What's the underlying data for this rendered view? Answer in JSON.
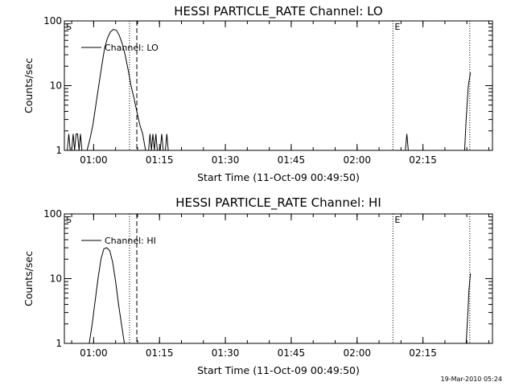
{
  "chart_data": [
    {
      "type": "line",
      "title": "HESSI PARTICLE_RATE Channel: LO",
      "xlabel": "Start Time (11-Oct-09 00:49:50)",
      "ylabel": "Counts/sec",
      "yscale": "log",
      "ylim": [
        1,
        100
      ],
      "xlim": [
        "00:53:20",
        "02:30:50"
      ],
      "x_ticks": [
        "01:00",
        "01:15",
        "01:30",
        "01:45",
        "02:00",
        "02:15"
      ],
      "y_ticks": [
        "1",
        "10",
        "100"
      ],
      "legend": {
        "placement": "top-left",
        "entries": [
          "Channel: LO"
        ]
      },
      "markers": [
        {
          "label": "S",
          "x": "00:53:20",
          "style": "dotted"
        },
        {
          "label": "",
          "x": "01:08:10",
          "style": "dotted"
        },
        {
          "label": "",
          "x": "01:09:50",
          "style": "dashed"
        },
        {
          "label": "E",
          "x": "02:08:10",
          "style": "dotted"
        },
        {
          "label": "",
          "x": "02:25:40",
          "style": "dotted"
        }
      ],
      "series": [
        {
          "name": "Channel: LO",
          "segments": [
            [
              [
                "00:54:00",
                1
              ],
              [
                "00:54:20",
                1.8
              ],
              [
                "00:54:40",
                1
              ],
              [
                "00:55:00",
                1
              ],
              [
                "00:55:20",
                1.8
              ],
              [
                "00:55:40",
                1
              ],
              [
                "00:56:00",
                1.8
              ],
              [
                "00:56:20",
                1.8
              ],
              [
                "00:56:40",
                1
              ],
              [
                "00:57:00",
                1.8
              ],
              [
                "00:57:20",
                1
              ]
            ],
            [
              [
                "00:58:30",
                1
              ],
              [
                "00:59:10",
                1.5
              ],
              [
                "00:59:50",
                2.5
              ],
              [
                "01:00:30",
                5
              ],
              [
                "01:01:10",
                10
              ],
              [
                "01:01:50",
                20
              ],
              [
                "01:02:30",
                38
              ],
              [
                "01:03:10",
                55
              ],
              [
                "01:03:50",
                68
              ],
              [
                "01:04:30",
                74
              ],
              [
                "01:05:10",
                72
              ],
              [
                "01:05:50",
                60
              ],
              [
                "01:06:30",
                45
              ],
              [
                "01:07:10",
                30
              ],
              [
                "01:07:50",
                18
              ],
              [
                "01:08:30",
                10
              ],
              [
                "01:09:10",
                6.5
              ],
              [
                "01:09:50",
                4
              ],
              [
                "01:10:30",
                2.5
              ],
              [
                "01:11:10",
                1.8
              ],
              [
                "01:11:50",
                1
              ]
            ],
            [
              [
                "01:12:30",
                1
              ],
              [
                "01:12:50",
                1.8
              ],
              [
                "01:13:10",
                1
              ],
              [
                "01:13:30",
                1.8
              ],
              [
                "01:13:50",
                1
              ],
              [
                "01:14:10",
                1.8
              ],
              [
                "01:14:30",
                1
              ],
              [
                "01:15:10",
                1
              ],
              [
                "01:15:30",
                1.8
              ],
              [
                "01:15:50",
                1
              ],
              [
                "01:16:20",
                1
              ],
              [
                "01:16:40",
                1.8
              ],
              [
                "01:17:00",
                1
              ]
            ],
            [
              [
                "02:11:00",
                1
              ],
              [
                "02:11:20",
                1.8
              ],
              [
                "02:11:40",
                1
              ]
            ],
            [
              [
                "02:24:30",
                1
              ],
              [
                "02:24:50",
                3
              ],
              [
                "02:25:20",
                10
              ],
              [
                "02:25:50",
                16
              ]
            ]
          ]
        }
      ]
    },
    {
      "type": "line",
      "title": "HESSI PARTICLE_RATE Channel: HI",
      "xlabel": "Start Time (11-Oct-09 00:49:50)",
      "ylabel": "Counts/sec",
      "yscale": "log",
      "ylim": [
        1,
        100
      ],
      "xlim": [
        "00:53:20",
        "02:30:50"
      ],
      "x_ticks": [
        "01:00",
        "01:15",
        "01:30",
        "01:45",
        "02:00",
        "02:15"
      ],
      "y_ticks": [
        "1",
        "10",
        "100"
      ],
      "legend": {
        "placement": "top-left",
        "entries": [
          "Channel: HI"
        ]
      },
      "markers": [
        {
          "label": "S",
          "x": "00:53:20",
          "style": "dotted"
        },
        {
          "label": "",
          "x": "01:08:10",
          "style": "dotted"
        },
        {
          "label": "",
          "x": "01:09:50",
          "style": "dashed"
        },
        {
          "label": "E",
          "x": "02:08:10",
          "style": "dotted"
        },
        {
          "label": "",
          "x": "02:25:40",
          "style": "dotted"
        }
      ],
      "series": [
        {
          "name": "Channel: HI",
          "segments": [
            [
              [
                "00:59:00",
                1
              ],
              [
                "00:59:40",
                2
              ],
              [
                "01:00:20",
                4.5
              ],
              [
                "01:01:00",
                10
              ],
              [
                "01:01:40",
                20
              ],
              [
                "01:02:20",
                29
              ],
              [
                "01:03:00",
                30
              ],
              [
                "01:03:40",
                27
              ],
              [
                "01:04:20",
                18
              ],
              [
                "01:05:00",
                9
              ],
              [
                "01:05:40",
                4
              ],
              [
                "01:06:20",
                2
              ],
              [
                "01:07:00",
                1
              ]
            ],
            [
              [
                "02:24:50",
                1
              ],
              [
                "02:25:10",
                2.5
              ],
              [
                "02:25:30",
                7
              ],
              [
                "02:25:50",
                12
              ]
            ]
          ]
        }
      ]
    }
  ],
  "footer": {
    "timestamp": "19-Mar-2010 05:24"
  }
}
